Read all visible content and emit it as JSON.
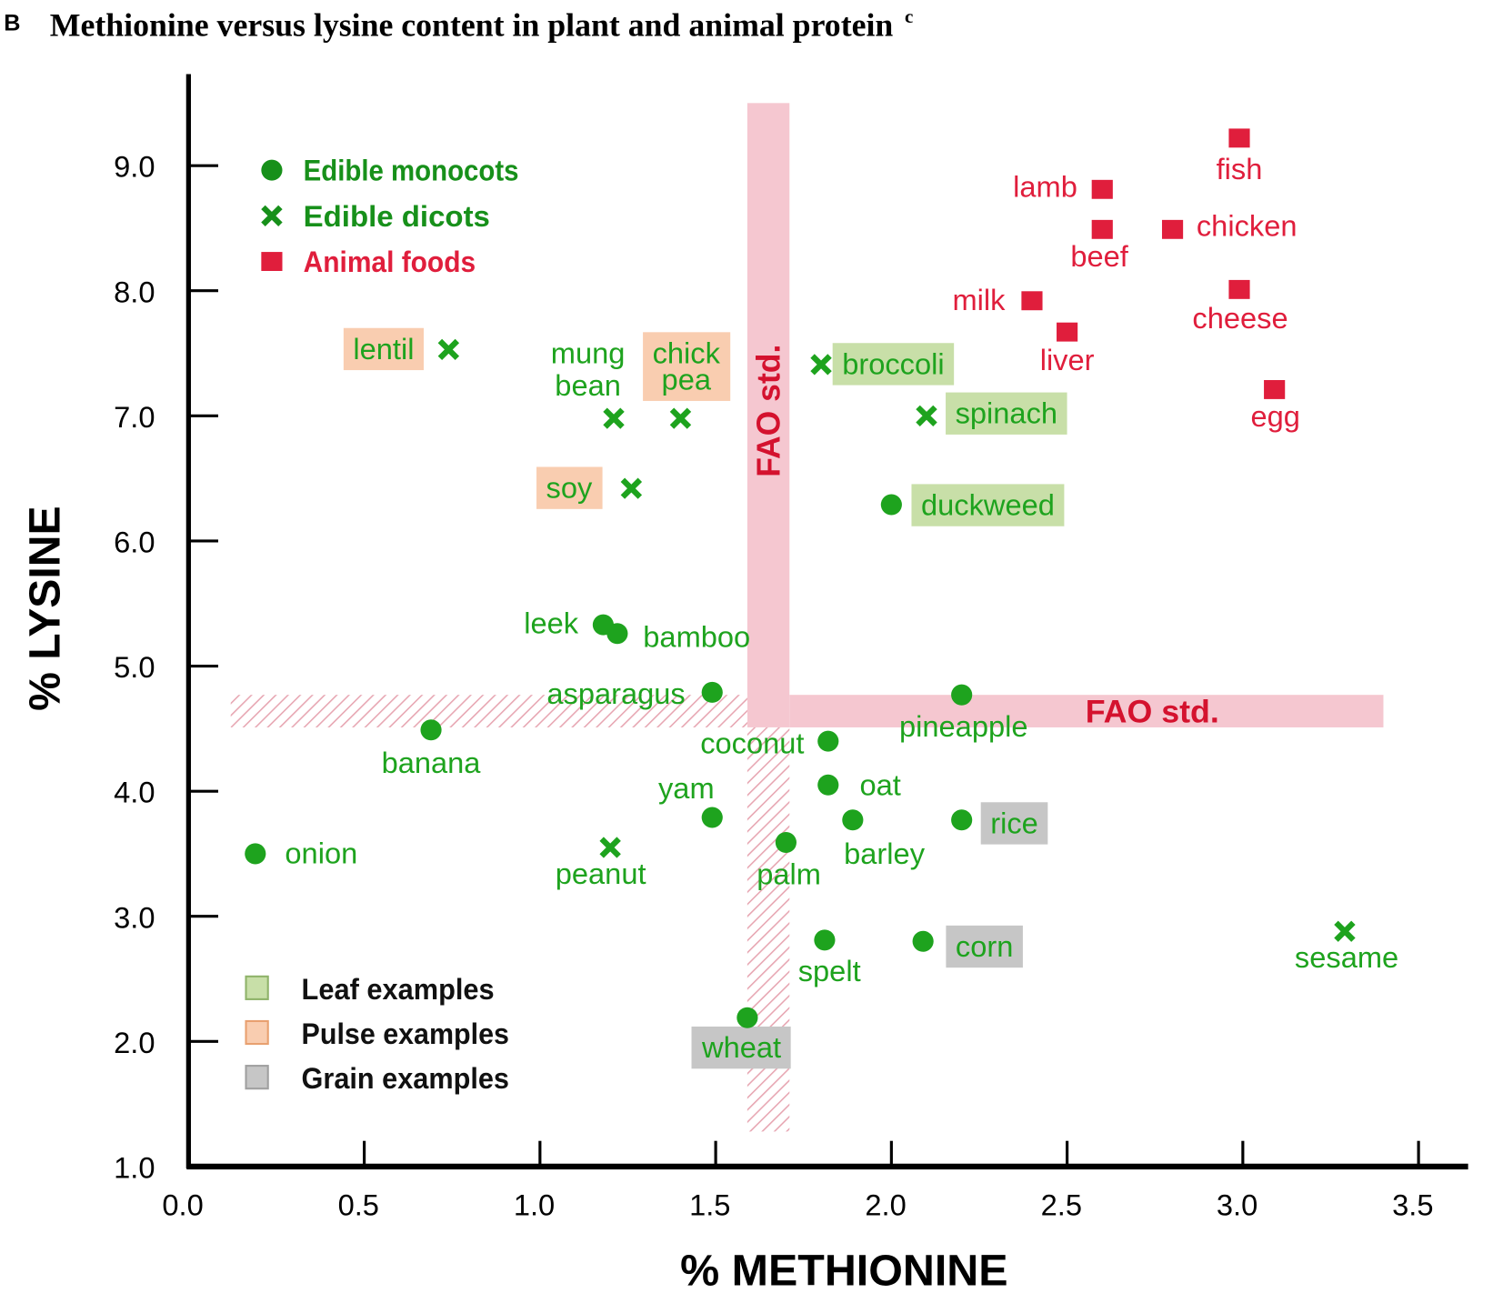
{
  "panel_letter": "B",
  "chart_data": {
    "type": "scatter",
    "title": "Methionine versus lysine content in plant and animal protein",
    "title_superscript": "c",
    "xlabel": "% METHIONINE",
    "ylabel": "% LYSINE",
    "xlim": [
      0.0,
      3.65
    ],
    "ylim": [
      1.0,
      9.5
    ],
    "x_ticks": [
      "0.0",
      "0.5",
      "1.0",
      "1.5",
      "2.0",
      "2.5",
      "3.0",
      "3.5"
    ],
    "y_ticks": [
      "1.0",
      "2.0",
      "3.0",
      "4.0",
      "5.0",
      "6.0",
      "7.0",
      "8.0",
      "9.0"
    ],
    "grid": false,
    "legend_placement": "top-left",
    "colors": {
      "plant": "#1ea31e",
      "plant_legend": "#17901a",
      "animal": "#e01e3c",
      "fao": "#f5c7d0",
      "fao_text": "#d4122e",
      "leaf_box": "#c8dfa8",
      "pulse_box": "#f9cdb0",
      "grain_box": "#c6c6c6"
    },
    "series": [
      {
        "name": "Edible monocots",
        "marker": "circle",
        "points": [
          {
            "label": "onion",
            "x": 0.19,
            "y": 3.5
          },
          {
            "label": "banana",
            "x": 0.69,
            "y": 4.49
          },
          {
            "label": "leek",
            "x": 1.18,
            "y": 5.33
          },
          {
            "label": "bamboo",
            "x": 1.22,
            "y": 5.26
          },
          {
            "label": "asparagus",
            "x": 1.49,
            "y": 4.79
          },
          {
            "label": "coconut",
            "x": 1.82,
            "y": 4.4
          },
          {
            "label": "oat",
            "x": 1.82,
            "y": 4.05
          },
          {
            "label": "yam",
            "x": 1.49,
            "y": 3.79
          },
          {
            "label": "barley",
            "x": 1.89,
            "y": 3.77
          },
          {
            "label": "palm",
            "x": 1.7,
            "y": 3.59
          },
          {
            "label": "rice",
            "x": 2.2,
            "y": 3.77,
            "group": "grain"
          },
          {
            "label": "pineapple",
            "x": 2.2,
            "y": 4.77
          },
          {
            "label": "duckweed",
            "x": 2.0,
            "y": 6.29,
            "group": "leaf"
          },
          {
            "label": "spelt",
            "x": 1.81,
            "y": 2.81
          },
          {
            "label": "corn",
            "x": 2.09,
            "y": 2.8,
            "group": "grain"
          },
          {
            "label": "wheat",
            "x": 1.59,
            "y": 2.19,
            "group": "grain"
          }
        ]
      },
      {
        "name": "Edible dicots",
        "marker": "x",
        "points": [
          {
            "label": "lentil",
            "x": 0.74,
            "y": 7.53,
            "group": "pulse"
          },
          {
            "label": "mung bean",
            "x": 1.21,
            "y": 6.98
          },
          {
            "label": "chick pea",
            "x": 1.4,
            "y": 6.98,
            "group": "pulse"
          },
          {
            "label": "soy",
            "x": 1.26,
            "y": 6.42,
            "group": "pulse"
          },
          {
            "label": "broccoli",
            "x": 1.8,
            "y": 7.41,
            "group": "leaf"
          },
          {
            "label": "spinach",
            "x": 2.1,
            "y": 7.0,
            "group": "leaf"
          },
          {
            "label": "peanut",
            "x": 1.2,
            "y": 3.55
          },
          {
            "label": "sesame",
            "x": 3.29,
            "y": 2.88
          }
        ]
      },
      {
        "name": "Animal foods",
        "marker": "square",
        "points": [
          {
            "label": "fish",
            "x": 2.99,
            "y": 9.22
          },
          {
            "label": "lamb",
            "x": 2.6,
            "y": 8.81
          },
          {
            "label": "beef",
            "x": 2.6,
            "y": 8.49
          },
          {
            "label": "chicken",
            "x": 2.8,
            "y": 8.49
          },
          {
            "label": "milk",
            "x": 2.4,
            "y": 7.92
          },
          {
            "label": "cheese",
            "x": 2.99,
            "y": 8.01
          },
          {
            "label": "liver",
            "x": 2.5,
            "y": 7.67
          },
          {
            "label": "egg",
            "x": 3.09,
            "y": 7.21
          }
        ]
      }
    ],
    "group_legend": [
      {
        "key": "leaf",
        "label": "Leaf examples"
      },
      {
        "key": "pulse",
        "label": "Pulse examples"
      },
      {
        "key": "grain",
        "label": "Grain examples"
      }
    ],
    "annotations": [
      {
        "text": "FAO std.",
        "orientation": "vertical",
        "x_range": [
          1.59,
          1.71
        ],
        "y_range": [
          1.28,
          9.5
        ]
      },
      {
        "text": "FAO std.",
        "orientation": "horizontal",
        "x_range": [
          0.12,
          3.4
        ],
        "y_range": [
          4.51,
          4.77
        ]
      }
    ]
  }
}
